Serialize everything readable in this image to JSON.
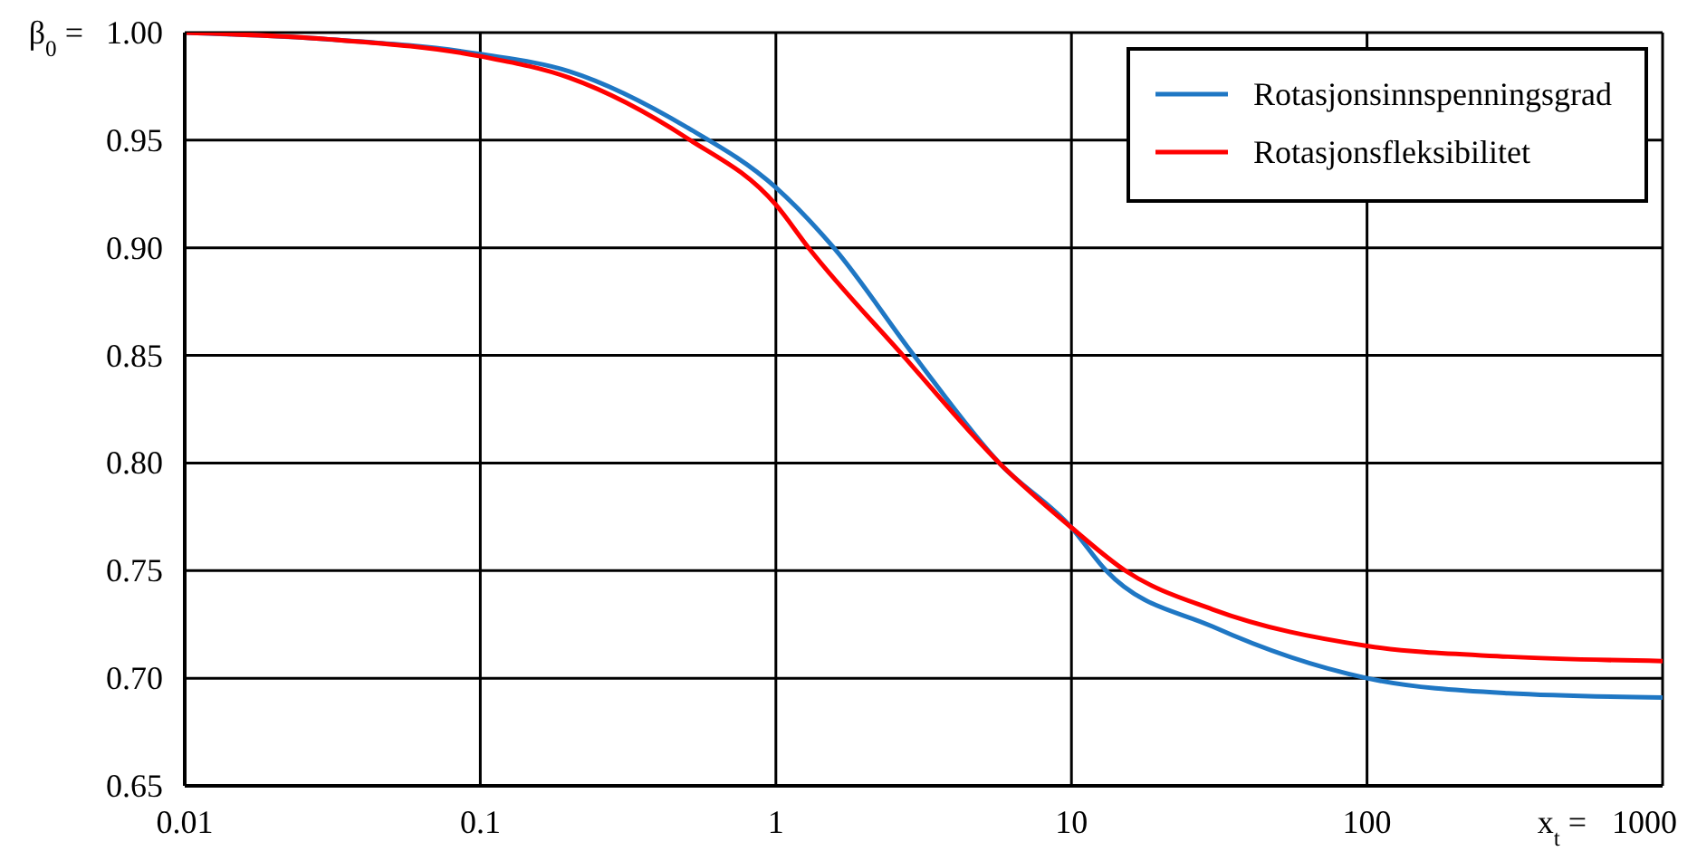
{
  "chart_data": {
    "type": "line",
    "xlabel": "x$_{t}$ =",
    "ylabel": "β$_{0}$ =",
    "log": "x",
    "xlim": [
      0.01,
      1000
    ],
    "xticks": [
      0.01,
      0.1,
      1,
      10,
      100,
      1000
    ],
    "ylim": [
      0.65,
      1.0
    ],
    "yticks": [
      {
        "value": 0.65,
        "label": "0.65"
      },
      {
        "value": 0.7,
        "label": "0.70"
      },
      {
        "value": 0.75,
        "label": "0.75"
      },
      {
        "value": 0.8,
        "label": "0.80"
      },
      {
        "value": 0.85,
        "label": "0.85"
      },
      {
        "value": 0.9,
        "label": "0.90"
      },
      {
        "value": 0.95,
        "label": "0.95"
      },
      {
        "value": 1.0,
        "label": "1.00"
      }
    ],
    "grid": true,
    "legend": "top right",
    "marker": "none",
    "line_style": "solid",
    "series": [
      {
        "name": "Rotasjonsinnspenningsgrad",
        "color": "#1f77c4",
        "x": [
          0.01,
          0.03,
          0.1,
          0.2,
          0.5,
          1,
          1.57,
          2.93,
          5.7,
          10,
          13.1,
          30,
          100,
          300,
          1000
        ],
        "values": [
          1.0,
          0.997,
          0.99,
          0.982,
          0.956,
          0.928,
          0.9,
          0.85,
          0.8,
          0.77,
          0.75,
          0.724,
          0.7,
          0.693,
          0.691
        ]
      },
      {
        "name": "Rotasjonsfleksibilitet",
        "color": "#ff0000",
        "x": [
          0.01,
          0.03,
          0.1,
          0.2,
          0.5,
          1,
          1.29,
          2.69,
          5.7,
          10,
          15.2,
          30,
          100,
          300,
          1000
        ],
        "values": [
          1.0,
          0.997,
          0.989,
          0.979,
          0.951,
          0.92,
          0.9,
          0.85,
          0.8,
          0.77,
          0.75,
          0.732,
          0.715,
          0.71,
          0.708
        ]
      }
    ]
  }
}
